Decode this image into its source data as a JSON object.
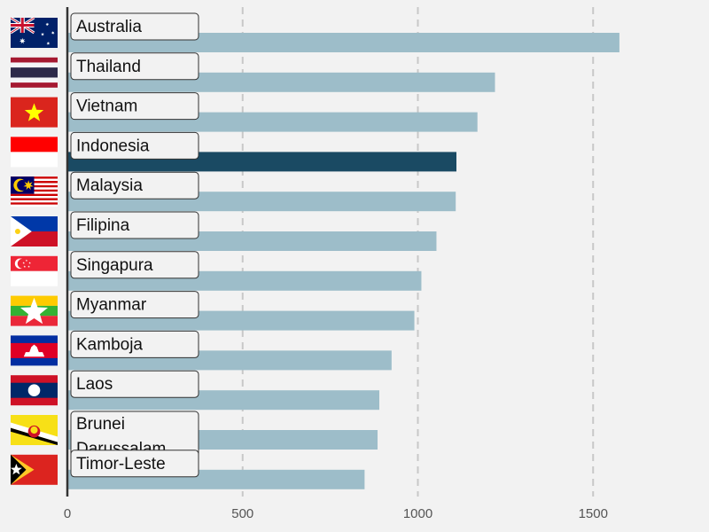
{
  "chart_data": {
    "type": "bar",
    "orientation": "horizontal",
    "title": "",
    "xlabel": "",
    "ylabel": "",
    "xlim": [
      0,
      1800
    ],
    "xticks": [
      0,
      500,
      1000,
      1500
    ],
    "grid": "vertical dashed",
    "highlight_category": "Indonesia",
    "colors": {
      "bar": "#9dbdc9",
      "highlight": "#1a4a63",
      "grid": "#c8c8c8",
      "axis": "#333333",
      "background": "#f2f2f2"
    },
    "categories": [
      {
        "label": "Australia",
        "value": 1575,
        "flag": "australia-flag"
      },
      {
        "label": "Thailand",
        "value": 1220,
        "flag": "thailand-flag"
      },
      {
        "label": "Vietnam",
        "value": 1170,
        "flag": "vietnam-flag"
      },
      {
        "label": "Indonesia",
        "value": 1110,
        "flag": "indonesia-flag"
      },
      {
        "label": "Malaysia",
        "value": 1108,
        "flag": "malaysia-flag"
      },
      {
        "label": "Filipina",
        "value": 1053,
        "flag": "philippines-flag"
      },
      {
        "label": "Singapura",
        "value": 1010,
        "flag": "singapore-flag"
      },
      {
        "label": "Myanmar",
        "value": 990,
        "flag": "myanmar-flag"
      },
      {
        "label": "Kamboja",
        "value": 925,
        "flag": "cambodia-flag"
      },
      {
        "label": "Laos",
        "value": 890,
        "flag": "laos-flag"
      },
      {
        "label": "Brunei Darussalam",
        "value": 885,
        "flag": "brunei-flag"
      },
      {
        "label": "Timor-Leste",
        "value": 848,
        "flag": "timor-leste-flag"
      }
    ]
  }
}
